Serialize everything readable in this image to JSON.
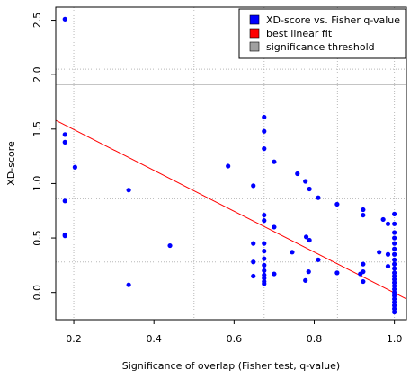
{
  "chart_data": {
    "type": "scatter",
    "title": "",
    "xlabel": "Significance of overlap (Fisher test, q-value)",
    "ylabel": "XD-score",
    "xlim": [
      0.155,
      1.03
    ],
    "ylim": [
      -0.25,
      2.62
    ],
    "xticks": [
      0.2,
      0.4,
      0.6,
      0.8,
      1.0
    ],
    "xtick_labels": [
      "0.2",
      "0.4",
      "0.6",
      "0.8",
      "1.0"
    ],
    "yticks": [
      0.0,
      0.5,
      1.0,
      1.5,
      2.0,
      2.5
    ],
    "ytick_labels": [
      "0.0",
      "0.5",
      "1.0",
      "1.5",
      "2.0",
      "2.5"
    ],
    "grid": true,
    "grid_style": "dotted",
    "grid_x": [
      0.2,
      0.5,
      0.675,
      0.858,
      1.0
    ],
    "grid_y": [
      0.28,
      0.86,
      2.05
    ],
    "legend_position": "top-right",
    "legend": [
      {
        "label": "XD-score vs. Fisher q-value",
        "color": "#0000ff"
      },
      {
        "label": "best linear fit",
        "color": "#ff0000"
      },
      {
        "label": "significance threshold",
        "color": "#a0a0a0"
      }
    ],
    "series": [
      {
        "name": "XD-score vs. Fisher q-value",
        "color": "#0000ff",
        "points": [
          [
            0.178,
            2.51
          ],
          [
            0.178,
            1.45
          ],
          [
            0.178,
            1.38
          ],
          [
            0.178,
            0.84
          ],
          [
            0.178,
            0.53
          ],
          [
            0.178,
            0.52
          ],
          [
            0.203,
            1.15
          ],
          [
            0.337,
            0.94
          ],
          [
            0.337,
            0.07
          ],
          [
            0.44,
            0.43
          ],
          [
            0.585,
            1.16
          ],
          [
            0.648,
            0.98
          ],
          [
            0.648,
            0.45
          ],
          [
            0.648,
            0.28
          ],
          [
            0.648,
            0.15
          ],
          [
            0.675,
            1.61
          ],
          [
            0.675,
            1.48
          ],
          [
            0.675,
            1.32
          ],
          [
            0.675,
            0.71
          ],
          [
            0.675,
            0.66
          ],
          [
            0.675,
            0.45
          ],
          [
            0.675,
            0.38
          ],
          [
            0.675,
            0.31
          ],
          [
            0.675,
            0.25
          ],
          [
            0.675,
            0.2
          ],
          [
            0.675,
            0.16
          ],
          [
            0.675,
            0.13
          ],
          [
            0.675,
            0.1
          ],
          [
            0.675,
            0.08
          ],
          [
            0.7,
            1.2
          ],
          [
            0.7,
            0.6
          ],
          [
            0.7,
            0.17
          ],
          [
            0.745,
            0.37
          ],
          [
            0.758,
            1.09
          ],
          [
            0.778,
            1.02
          ],
          [
            0.78,
            0.51
          ],
          [
            0.788,
            0.48
          ],
          [
            0.788,
            0.95
          ],
          [
            0.786,
            0.19
          ],
          [
            0.778,
            0.11
          ],
          [
            0.81,
            0.87
          ],
          [
            0.81,
            0.3
          ],
          [
            0.857,
            0.81
          ],
          [
            0.857,
            0.18
          ],
          [
            0.915,
            0.17
          ],
          [
            0.922,
            0.76
          ],
          [
            0.922,
            0.71
          ],
          [
            0.922,
            0.26
          ],
          [
            0.922,
            0.19
          ],
          [
            0.922,
            0.1
          ],
          [
            0.962,
            0.37
          ],
          [
            0.972,
            0.67
          ],
          [
            0.984,
            0.63
          ],
          [
            0.984,
            0.35
          ],
          [
            0.984,
            0.24
          ],
          [
            1.0,
            0.72
          ],
          [
            1.0,
            0.63
          ],
          [
            1.0,
            0.55
          ],
          [
            1.0,
            0.5
          ],
          [
            1.0,
            0.45
          ],
          [
            1.0,
            0.4
          ],
          [
            1.0,
            0.35
          ],
          [
            1.0,
            0.3
          ],
          [
            1.0,
            0.26
          ],
          [
            1.0,
            0.22
          ],
          [
            1.0,
            0.18
          ],
          [
            1.0,
            0.15
          ],
          [
            1.0,
            0.12
          ],
          [
            1.0,
            0.09
          ],
          [
            1.0,
            0.06
          ],
          [
            1.0,
            0.03
          ],
          [
            1.0,
            0.0
          ],
          [
            1.0,
            -0.03
          ],
          [
            1.0,
            -0.06
          ],
          [
            1.0,
            -0.09
          ],
          [
            1.0,
            -0.12
          ],
          [
            1.0,
            -0.15
          ],
          [
            1.0,
            -0.18
          ]
        ]
      }
    ],
    "fit_line": {
      "name": "best linear fit",
      "color": "#ff0000",
      "start": [
        0.155,
        1.58
      ],
      "end": [
        1.03,
        -0.06
      ]
    },
    "threshold": {
      "name": "significance threshold",
      "color": "#a0a0a0",
      "y": 1.91
    }
  }
}
